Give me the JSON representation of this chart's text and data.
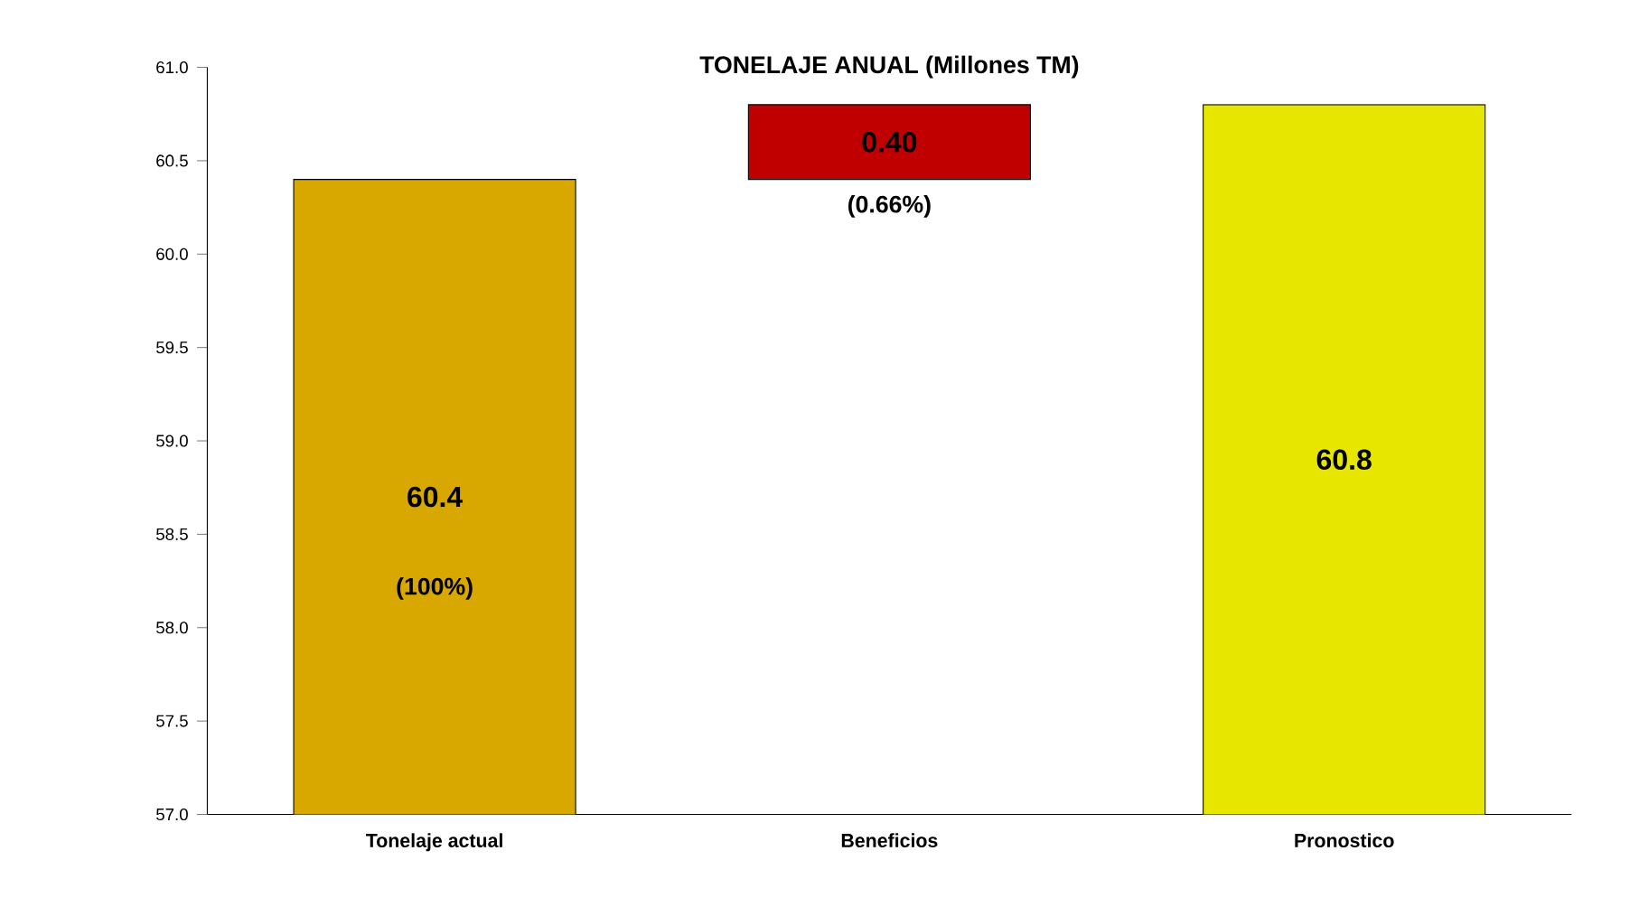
{
  "chart_data": {
    "type": "bar",
    "title": "TONELAJE ANUAL (Millones TM)",
    "categories": [
      "Tonelaje actual",
      "Beneficios",
      "Pronostico"
    ],
    "values": [
      60.4,
      0.4,
      60.8
    ],
    "base": [
      null,
      60.4,
      null
    ],
    "colors": [
      "#d9a800",
      "#c00000",
      "#e6e600"
    ],
    "value_labels": [
      "60.4",
      "0.40",
      "60.8"
    ],
    "annotations": [
      "(100%)",
      "(0.66%)"
    ],
    "ylim": [
      57.0,
      61.0
    ],
    "yticks": [
      {
        "value": 57.0,
        "label": "57.0"
      },
      {
        "value": 57.5,
        "label": "57.5"
      },
      {
        "value": 58.0,
        "label": "58.0"
      },
      {
        "value": 58.5,
        "label": "58.5"
      },
      {
        "value": 59.0,
        "label": "59.0"
      },
      {
        "value": 59.5,
        "label": "59.5"
      },
      {
        "value": 60.0,
        "label": "60.0"
      },
      {
        "value": 60.5,
        "label": "60.5"
      },
      {
        "value": 61.0,
        "label": "61.0"
      }
    ],
    "grid": false,
    "legend": false
  }
}
